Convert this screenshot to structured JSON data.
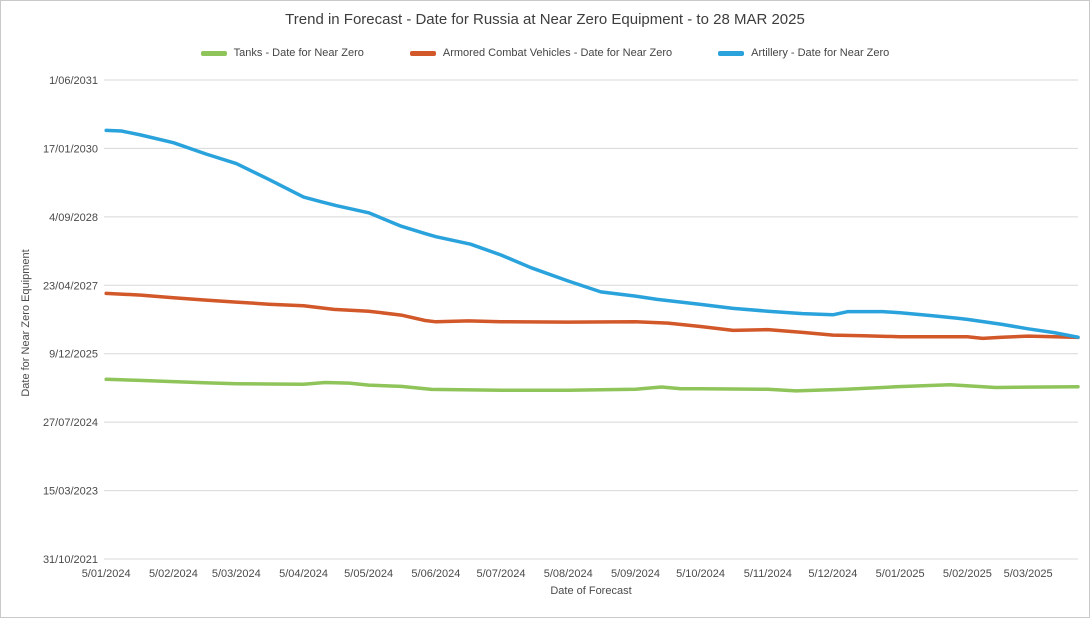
{
  "chart_data": {
    "type": "line",
    "title": "Trend in Forecast - Date for Russia at Near Zero Equipment - to 28 MAR 2025",
    "xlabel": "Date of Forecast",
    "ylabel": "Date for Near Zero Equipment",
    "grid": "horizontal",
    "legend_position": "top",
    "x_domain": [
      "2024-01-04",
      "2025-03-28"
    ],
    "y_domain": [
      "2021-10-31",
      "2031-06-01"
    ],
    "x_ticks": [
      {
        "label": "5/01/2024",
        "date": "2024-01-05"
      },
      {
        "label": "5/02/2024",
        "date": "2024-02-05"
      },
      {
        "label": "5/03/2024",
        "date": "2024-03-05"
      },
      {
        "label": "5/04/2024",
        "date": "2024-04-05"
      },
      {
        "label": "5/05/2024",
        "date": "2024-05-05"
      },
      {
        "label": "5/06/2024",
        "date": "2024-06-05"
      },
      {
        "label": "5/07/2024",
        "date": "2024-07-05"
      },
      {
        "label": "5/08/2024",
        "date": "2024-08-05"
      },
      {
        "label": "5/09/2024",
        "date": "2024-09-05"
      },
      {
        "label": "5/10/2024",
        "date": "2024-10-05"
      },
      {
        "label": "5/11/2024",
        "date": "2024-11-05"
      },
      {
        "label": "5/12/2024",
        "date": "2024-12-05"
      },
      {
        "label": "5/01/2025",
        "date": "2025-01-05"
      },
      {
        "label": "5/02/2025",
        "date": "2025-02-05"
      },
      {
        "label": "5/03/2025",
        "date": "2025-03-05"
      }
    ],
    "y_ticks": [
      {
        "label": "1/06/2031",
        "date": "2031-06-01"
      },
      {
        "label": "17/01/2030",
        "date": "2030-01-17"
      },
      {
        "label": "4/09/2028",
        "date": "2028-09-04"
      },
      {
        "label": "23/04/2027",
        "date": "2027-04-23"
      },
      {
        "label": "9/12/2025",
        "date": "2025-12-09"
      },
      {
        "label": "27/07/2024",
        "date": "2024-07-27"
      },
      {
        "label": "15/03/2023",
        "date": "2023-03-15"
      },
      {
        "label": "31/10/2021",
        "date": "2021-10-31"
      }
    ],
    "series": [
      {
        "name": "Tanks - Date for Near Zero",
        "color": "#8FC45A",
        "points": [
          [
            "2024-01-05",
            "2025-06-05"
          ],
          [
            "2024-01-19",
            "2025-05-29"
          ],
          [
            "2024-02-05",
            "2025-05-19"
          ],
          [
            "2024-02-19",
            "2025-05-11"
          ],
          [
            "2024-03-05",
            "2025-05-04"
          ],
          [
            "2024-03-20",
            "2025-05-02"
          ],
          [
            "2024-04-05",
            "2025-04-30"
          ],
          [
            "2024-04-15",
            "2025-05-13"
          ],
          [
            "2024-04-26",
            "2025-05-08"
          ],
          [
            "2024-05-05",
            "2025-04-24"
          ],
          [
            "2024-05-20",
            "2025-04-14"
          ],
          [
            "2024-06-03",
            "2025-03-23"
          ],
          [
            "2024-07-05",
            "2025-03-17"
          ],
          [
            "2024-08-05",
            "2025-03-17"
          ],
          [
            "2024-08-20",
            "2025-03-21"
          ],
          [
            "2024-09-05",
            "2025-03-24"
          ],
          [
            "2024-09-17",
            "2025-04-10"
          ],
          [
            "2024-09-26",
            "2025-03-28"
          ],
          [
            "2024-10-05",
            "2025-03-28"
          ],
          [
            "2024-11-05",
            "2025-03-24"
          ],
          [
            "2024-11-18",
            "2025-03-12"
          ],
          [
            "2024-12-11",
            "2025-03-24"
          ],
          [
            "2025-01-03",
            "2025-04-11"
          ],
          [
            "2025-01-28",
            "2025-04-26"
          ],
          [
            "2025-02-18",
            "2025-04-06"
          ],
          [
            "2025-03-05",
            "2025-04-09"
          ],
          [
            "2025-03-28",
            "2025-04-11"
          ]
        ]
      },
      {
        "name": "Armored Combat Vehicles - Date for Near Zero",
        "color": "#D2582A",
        "points": [
          [
            "2024-01-05",
            "2027-02-23"
          ],
          [
            "2024-01-21",
            "2027-02-10"
          ],
          [
            "2024-02-05",
            "2027-01-22"
          ],
          [
            "2024-02-20",
            "2027-01-05"
          ],
          [
            "2024-03-05",
            "2026-12-21"
          ],
          [
            "2024-03-20",
            "2026-12-06"
          ],
          [
            "2024-04-05",
            "2026-11-24"
          ],
          [
            "2024-04-19",
            "2026-10-29"
          ],
          [
            "2024-05-05",
            "2026-10-16"
          ],
          [
            "2024-05-20",
            "2026-09-17"
          ],
          [
            "2024-05-31",
            "2026-08-09"
          ],
          [
            "2024-06-05",
            "2026-07-30"
          ],
          [
            "2024-06-20",
            "2026-08-06"
          ],
          [
            "2024-07-05",
            "2026-07-31"
          ],
          [
            "2024-08-05",
            "2026-07-28"
          ],
          [
            "2024-09-05",
            "2026-07-30"
          ],
          [
            "2024-09-20",
            "2026-07-21"
          ],
          [
            "2024-10-05",
            "2026-06-26"
          ],
          [
            "2024-10-20",
            "2026-05-28"
          ],
          [
            "2024-11-05",
            "2026-06-03"
          ],
          [
            "2024-11-21",
            "2026-05-14"
          ],
          [
            "2024-12-05",
            "2026-04-24"
          ],
          [
            "2024-12-19",
            "2026-04-19"
          ],
          [
            "2025-01-05",
            "2026-04-12"
          ],
          [
            "2025-02-05",
            "2026-04-12"
          ],
          [
            "2025-02-12",
            "2026-03-31"
          ],
          [
            "2025-02-21",
            "2026-04-09"
          ],
          [
            "2025-03-05",
            "2026-04-17"
          ],
          [
            "2025-03-17",
            "2026-04-12"
          ],
          [
            "2025-03-28",
            "2026-04-07"
          ]
        ]
      },
      {
        "name": "Artillery - Date for Near Zero",
        "color": "#2AA3DC",
        "points": [
          [
            "2024-01-05",
            "2030-05-29"
          ],
          [
            "2024-01-12",
            "2030-05-24"
          ],
          [
            "2024-01-21",
            "2030-04-25"
          ],
          [
            "2024-02-05",
            "2030-02-28"
          ],
          [
            "2024-02-20",
            "2029-12-07"
          ],
          [
            "2024-03-05",
            "2029-09-28"
          ],
          [
            "2024-03-20",
            "2029-06-05"
          ],
          [
            "2024-04-05",
            "2029-01-26"
          ],
          [
            "2024-04-13",
            "2028-12-24"
          ],
          [
            "2024-04-20",
            "2028-11-25"
          ],
          [
            "2024-05-05",
            "2028-10-04"
          ],
          [
            "2024-05-20",
            "2028-06-28"
          ],
          [
            "2024-05-31",
            "2028-05-05"
          ],
          [
            "2024-06-05",
            "2028-04-12"
          ],
          [
            "2024-06-21",
            "2028-02-17"
          ],
          [
            "2024-07-05",
            "2027-11-30"
          ],
          [
            "2024-07-19",
            "2027-08-29"
          ],
          [
            "2024-08-05",
            "2027-05-24"
          ],
          [
            "2024-08-20",
            "2027-03-06"
          ],
          [
            "2024-09-05",
            "2027-02-03"
          ],
          [
            "2024-09-15",
            "2027-01-10"
          ],
          [
            "2024-10-05",
            "2026-12-04"
          ],
          [
            "2024-10-20",
            "2026-11-05"
          ],
          [
            "2024-11-05",
            "2026-10-16"
          ],
          [
            "2024-11-21",
            "2026-09-28"
          ],
          [
            "2024-12-05",
            "2026-09-19"
          ],
          [
            "2024-12-12",
            "2026-10-13"
          ],
          [
            "2024-12-28",
            "2026-10-13"
          ],
          [
            "2025-01-05",
            "2026-10-04"
          ],
          [
            "2025-01-20",
            "2026-09-13"
          ],
          [
            "2025-01-31",
            "2026-08-26"
          ],
          [
            "2025-02-05",
            "2026-08-17"
          ],
          [
            "2025-02-21",
            "2026-07-11"
          ],
          [
            "2025-03-05",
            "2026-06-09"
          ],
          [
            "2025-03-17",
            "2026-05-12"
          ],
          [
            "2025-03-28",
            "2026-04-09"
          ]
        ]
      }
    ]
  }
}
